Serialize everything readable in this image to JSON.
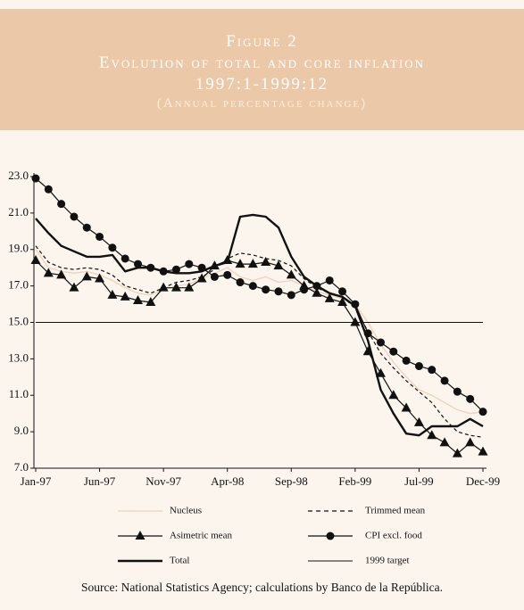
{
  "chart_data": {
    "type": "line",
    "title_lines": [
      "Figure 2",
      "Evolution of total and core inflation",
      "1997:1-1999:12",
      "(Annual percentage change)"
    ],
    "source": "Source: National Statistics Agency; calculations by Banco de la República.",
    "categories": [
      "Jan-97",
      null,
      null,
      null,
      null,
      "Jun-97",
      null,
      null,
      null,
      null,
      "Nov-97",
      null,
      null,
      null,
      null,
      "Apr-98",
      null,
      null,
      null,
      null,
      "Sep-98",
      null,
      null,
      null,
      null,
      "Feb-99",
      null,
      null,
      null,
      null,
      "Jul-99",
      null,
      null,
      null,
      null,
      "Dec-99"
    ],
    "ylim": [
      7,
      23
    ],
    "yticks": [
      {
        "value": 7,
        "label": "7.0"
      },
      {
        "value": 9,
        "label": "9.0"
      },
      {
        "value": 11,
        "label": "11.0"
      },
      {
        "value": 13,
        "label": "13.0"
      },
      {
        "value": 15,
        "label": "15.0"
      },
      {
        "value": 17,
        "label": "17.0"
      },
      {
        "value": 19,
        "label": "19.0"
      },
      {
        "value": 21,
        "label": "21.0"
      },
      {
        "value": 23,
        "label": "23.0"
      }
    ],
    "series": [
      {
        "name": "Nucleus",
        "color": "#efd2b8",
        "width": 1.3,
        "dash": false,
        "marker": "none",
        "values": [
          19.0,
          18.0,
          17.8,
          17.7,
          17.8,
          17.6,
          17.3,
          16.9,
          16.6,
          16.5,
          16.8,
          17.0,
          17.1,
          17.4,
          17.7,
          18.0,
          17.5,
          17.3,
          17.5,
          17.2,
          17.3,
          17.0,
          16.7,
          16.5,
          16.3,
          16.0,
          15.0,
          13.8,
          12.8,
          12.0,
          11.3,
          11.0,
          10.6,
          10.2,
          10.0,
          10.1
        ]
      },
      {
        "name": "Trimmed mean",
        "color": "#111111",
        "width": 1.2,
        "dash": true,
        "marker": "none",
        "values": [
          19.2,
          18.3,
          18.0,
          17.9,
          18.0,
          17.9,
          17.6,
          17.0,
          16.8,
          16.6,
          16.9,
          17.2,
          17.3,
          17.5,
          17.9,
          18.5,
          18.8,
          18.7,
          18.5,
          18.4,
          18.1,
          17.4,
          16.9,
          16.6,
          16.4,
          15.8,
          14.5,
          13.3,
          12.5,
          11.8,
          11.2,
          10.6,
          9.7,
          9.0,
          8.8,
          8.7
        ]
      },
      {
        "name": "Asimetric mean",
        "color": "#111111",
        "width": 1.2,
        "dash": false,
        "marker": "triangle",
        "values": [
          18.4,
          17.7,
          17.6,
          16.9,
          17.5,
          17.4,
          16.5,
          16.4,
          16.2,
          16.1,
          16.9,
          16.9,
          16.9,
          17.4,
          18.1,
          18.4,
          18.2,
          18.2,
          18.3,
          18.1,
          17.6,
          17.0,
          16.6,
          16.3,
          16.1,
          15.0,
          13.4,
          12.2,
          11.0,
          10.3,
          9.5,
          8.8,
          8.4,
          7.8,
          8.4,
          7.9
        ]
      },
      {
        "name": "CPI excl. food",
        "color": "#111111",
        "width": 1.2,
        "dash": false,
        "marker": "circle",
        "values": [
          22.9,
          22.3,
          21.5,
          20.8,
          20.2,
          19.7,
          19.1,
          18.5,
          18.2,
          18.0,
          17.8,
          17.9,
          18.2,
          18.0,
          17.5,
          17.6,
          17.2,
          17.0,
          16.8,
          16.7,
          16.5,
          16.8,
          17.0,
          17.3,
          16.7,
          16.0,
          14.4,
          13.9,
          13.4,
          12.9,
          12.6,
          12.4,
          11.8,
          11.2,
          10.8,
          10.1
        ]
      },
      {
        "name": "Total",
        "color": "#111111",
        "width": 2.4,
        "dash": false,
        "marker": "none",
        "values": [
          20.7,
          19.9,
          19.2,
          18.9,
          18.6,
          18.6,
          18.7,
          17.8,
          18.0,
          18.0,
          17.8,
          17.7,
          17.7,
          17.8,
          18.1,
          18.3,
          20.8,
          20.9,
          20.8,
          20.2,
          18.6,
          17.5,
          17.0,
          16.6,
          16.4,
          15.9,
          14.0,
          11.3,
          10.0,
          8.9,
          8.8,
          9.3,
          9.3,
          9.3,
          9.7,
          9.3
        ]
      },
      {
        "name": "1999 target",
        "color": "#111111",
        "width": 1,
        "dash": false,
        "marker": "none",
        "values": [
          15,
          15,
          15,
          15,
          15,
          15,
          15,
          15,
          15,
          15,
          15,
          15,
          15,
          15,
          15,
          15,
          15,
          15,
          15,
          15,
          15,
          15,
          15,
          15,
          15,
          15,
          15,
          15,
          15,
          15,
          15,
          15,
          15,
          15,
          15,
          15
        ]
      }
    ]
  }
}
